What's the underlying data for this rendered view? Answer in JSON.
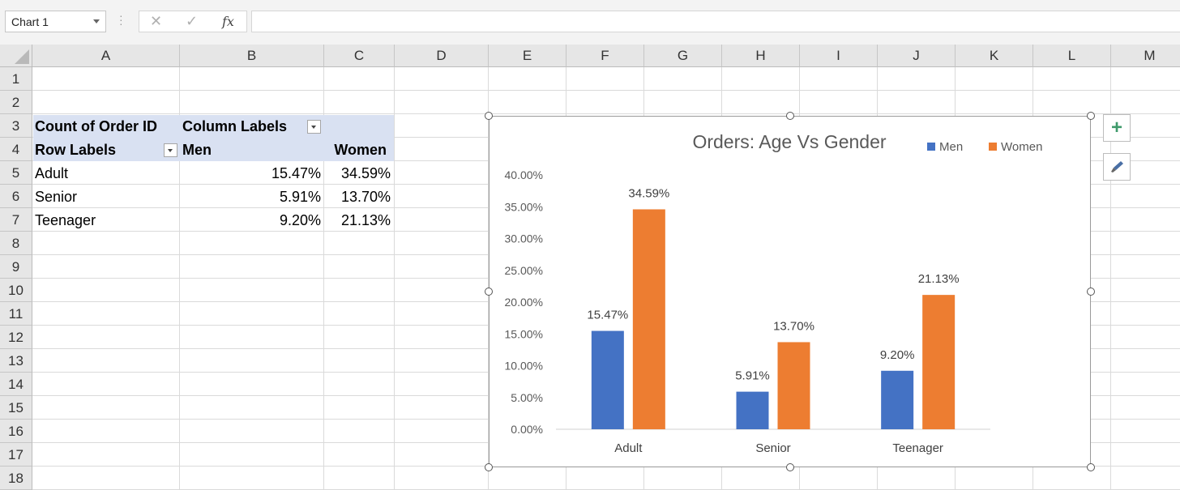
{
  "name_box": "Chart 1",
  "formula_bar": {
    "fx_label": "fx",
    "value": ""
  },
  "columns": [
    "A",
    "B",
    "C",
    "D",
    "E",
    "F",
    "G",
    "H",
    "I",
    "J",
    "K",
    "L",
    "M"
  ],
  "rows": [
    "1",
    "2",
    "3",
    "4",
    "5",
    "6",
    "7",
    "8",
    "9",
    "10",
    "11",
    "12",
    "13",
    "14",
    "15",
    "16",
    "17",
    "18"
  ],
  "pivot": {
    "value_label": "Count of Order ID",
    "column_labels": "Column Labels",
    "row_labels": "Row Labels",
    "headers": [
      "Men",
      "Women"
    ],
    "rows": [
      {
        "label": "Adult",
        "men": "15.47%",
        "women": "34.59%"
      },
      {
        "label": "Senior",
        "men": "5.91%",
        "women": "13.70%"
      },
      {
        "label": "Teenager",
        "men": "9.20%",
        "women": "21.13%"
      }
    ]
  },
  "chart_data": {
    "type": "bar",
    "title": "Orders: Age Vs Gender",
    "categories": [
      "Adult",
      "Senior",
      "Teenager"
    ],
    "series": [
      {
        "name": "Men",
        "values": [
          15.47,
          5.91,
          9.2
        ],
        "labels": [
          "15.47%",
          "5.91%",
          "9.20%"
        ],
        "color": "#4472c4"
      },
      {
        "name": "Women",
        "values": [
          34.59,
          13.7,
          21.13
        ],
        "labels": [
          "34.59%",
          "13.70%",
          "21.13%"
        ],
        "color": "#ed7d31"
      }
    ],
    "ylim": [
      0,
      40
    ],
    "yticks": [
      "0.00%",
      "5.00%",
      "10.00%",
      "15.00%",
      "20.00%",
      "25.00%",
      "30.00%",
      "35.00%",
      "40.00%"
    ],
    "legend_position": "top-right",
    "grid": false
  }
}
